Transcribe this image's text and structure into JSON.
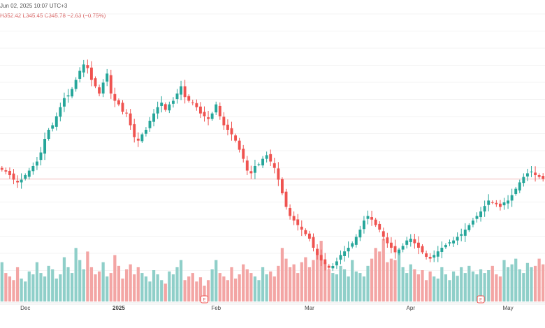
{
  "header": {
    "datetime": "Jun 02, 2025 10:07 UTC+3"
  },
  "ohlc": {
    "h_label": "H",
    "h_value": "352.42",
    "l_label": "L",
    "l_value": "345.45",
    "c_label": "C",
    "c_value": "345.78",
    "change": "−2.63 (−0.75%)"
  },
  "colors": {
    "up": "#26a69a",
    "down": "#ef5350",
    "up_volume": "#8fcfc9",
    "down_volume": "#f3a5a4",
    "price_line": "#f0b6b6"
  },
  "chart_data": {
    "type": "candlestick",
    "x_labels": [
      {
        "text": "Dec",
        "index": 6,
        "bold": false
      },
      {
        "text": "2025",
        "index": 30,
        "bold": true
      },
      {
        "text": "Feb",
        "index": 55,
        "bold": false
      },
      {
        "text": "Mar",
        "index": 79,
        "bold": false
      },
      {
        "text": "Apr",
        "index": 105,
        "bold": false
      },
      {
        "text": "May",
        "index": 130,
        "bold": false
      }
    ],
    "earnings_markers": [
      {
        "text": "E",
        "index": 52
      },
      {
        "text": "E",
        "index": 123
      }
    ],
    "current_price": 345.78,
    "price_range": [
      220,
      520
    ],
    "closes": [
      356,
      354,
      350,
      345,
      342,
      345,
      350,
      355,
      360,
      365,
      375,
      390,
      400,
      405,
      415,
      425,
      435,
      438,
      445,
      455,
      465,
      472,
      468,
      455,
      448,
      440,
      452,
      462,
      440,
      432,
      428,
      420,
      418,
      405,
      392,
      388,
      395,
      400,
      410,
      418,
      425,
      430,
      422,
      428,
      432,
      440,
      448,
      436,
      432,
      430,
      425,
      418,
      415,
      412,
      418,
      428,
      415,
      405,
      400,
      395,
      388,
      378,
      368,
      355,
      352,
      360,
      362,
      368,
      372,
      365,
      358,
      345,
      330,
      315,
      305,
      300,
      295,
      290,
      285,
      280,
      270,
      262,
      256,
      252,
      248,
      250,
      255,
      262,
      266,
      270,
      275,
      282,
      290,
      300,
      305,
      301,
      295,
      290,
      282,
      275,
      270,
      265,
      268,
      272,
      278,
      280,
      275,
      270,
      265,
      260,
      258,
      262,
      266,
      270,
      273,
      276,
      278,
      282,
      285,
      290,
      295,
      300,
      305,
      310,
      316,
      322,
      320,
      318,
      315,
      320,
      322,
      328,
      335,
      342,
      348,
      352,
      354,
      350,
      348,
      346
    ],
    "volumes": [
      55,
      40,
      35,
      30,
      48,
      32,
      28,
      42,
      38,
      55,
      40,
      35,
      50,
      45,
      32,
      38,
      62,
      48,
      40,
      75,
      58,
      45,
      70,
      48,
      38,
      42,
      55,
      35,
      40,
      65,
      50,
      32,
      45,
      52,
      38,
      48,
      40,
      35,
      28,
      44,
      38,
      30,
      25,
      42,
      38,
      48,
      58,
      30,
      35,
      40,
      28,
      34,
      22,
      30,
      45,
      58,
      40,
      35,
      30,
      48,
      32,
      38,
      52,
      45,
      40,
      35,
      30,
      48,
      38,
      42,
      35,
      50,
      75,
      60,
      48,
      52,
      40,
      55,
      62,
      48,
      58,
      70,
      85,
      55,
      45,
      40,
      38,
      50,
      45,
      35,
      58,
      42,
      40,
      35,
      50,
      60,
      75,
      70,
      88,
      55,
      60,
      58,
      72,
      48,
      40,
      52,
      45,
      38,
      44,
      30,
      42,
      35,
      32,
      48,
      38,
      30,
      42,
      36,
      48,
      40,
      50,
      42,
      38,
      45,
      40,
      44,
      50,
      38,
      35,
      58,
      48,
      52,
      60,
      45,
      40,
      54,
      48,
      50,
      60,
      52
    ]
  }
}
